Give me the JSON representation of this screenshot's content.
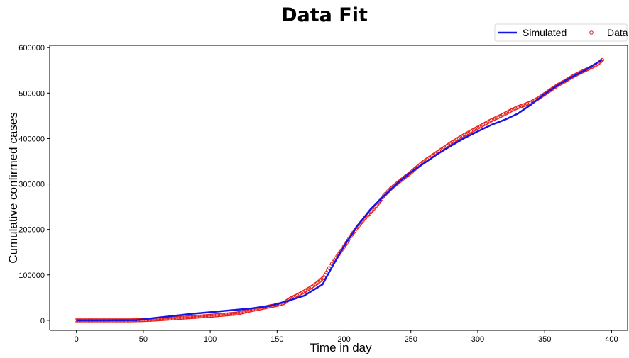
{
  "chart_data": {
    "type": "line",
    "title": "Data Fit",
    "xlabel": "Time in day",
    "ylabel": "Cumulative confirmed cases",
    "xlim": [
      -20,
      412
    ],
    "ylim": [
      -22000,
      605000
    ],
    "xticks": [
      0,
      50,
      100,
      150,
      200,
      250,
      300,
      350,
      400
    ],
    "yticks": [
      0,
      100000,
      200000,
      300000,
      400000,
      500000,
      600000
    ],
    "grid": false,
    "legend_position": "top-right",
    "colors": {
      "simulated": "#1515e8",
      "data": "#e8201d"
    },
    "series": [
      {
        "name": "Simulated",
        "style": "line",
        "points": [
          [
            0,
            0
          ],
          [
            20,
            0
          ],
          [
            45,
            500
          ],
          [
            55,
            4000
          ],
          [
            70,
            9000
          ],
          [
            85,
            14000
          ],
          [
            100,
            18000
          ],
          [
            115,
            22000
          ],
          [
            130,
            26000
          ],
          [
            145,
            32000
          ],
          [
            155,
            40000
          ],
          [
            170,
            54000
          ],
          [
            184,
            79000
          ],
          [
            190,
            112000
          ],
          [
            200,
            163000
          ],
          [
            210,
            208000
          ],
          [
            220,
            245000
          ],
          [
            230,
            274000
          ],
          [
            240,
            302000
          ],
          [
            250,
            326000
          ],
          [
            260,
            346000
          ],
          [
            270,
            366000
          ],
          [
            280,
            384000
          ],
          [
            290,
            401000
          ],
          [
            300,
            416000
          ],
          [
            310,
            430000
          ],
          [
            320,
            441000
          ],
          [
            330,
            455000
          ],
          [
            340,
            475000
          ],
          [
            350,
            498000
          ],
          [
            360,
            518000
          ],
          [
            370,
            535000
          ],
          [
            380,
            550000
          ],
          [
            390,
            568000
          ],
          [
            393,
            574000
          ]
        ]
      },
      {
        "name": "Data",
        "style": "scatter",
        "points": [
          [
            0,
            0
          ],
          [
            20,
            0
          ],
          [
            40,
            0
          ],
          [
            50,
            500
          ],
          [
            60,
            2000
          ],
          [
            70,
            4000
          ],
          [
            80,
            6000
          ],
          [
            90,
            8000
          ],
          [
            100,
            10000
          ],
          [
            110,
            12500
          ],
          [
            120,
            15000
          ],
          [
            130,
            22000
          ],
          [
            140,
            28000
          ],
          [
            150,
            34000
          ],
          [
            155,
            38000
          ],
          [
            160,
            48000
          ],
          [
            165,
            55000
          ],
          [
            170,
            63000
          ],
          [
            175,
            72000
          ],
          [
            180,
            82000
          ],
          [
            185,
            95000
          ],
          [
            190,
            120000
          ],
          [
            195,
            141000
          ],
          [
            200,
            162000
          ],
          [
            205,
            185000
          ],
          [
            210,
            205000
          ],
          [
            215,
            223000
          ],
          [
            220,
            238000
          ],
          [
            225,
            255000
          ],
          [
            230,
            275000
          ],
          [
            235,
            290000
          ],
          [
            240,
            302000
          ],
          [
            245,
            314000
          ],
          [
            250,
            325000
          ],
          [
            255,
            338000
          ],
          [
            260,
            350000
          ],
          [
            265,
            360000
          ],
          [
            270,
            370000
          ],
          [
            275,
            380000
          ],
          [
            280,
            390000
          ],
          [
            285,
            399000
          ],
          [
            290,
            408000
          ],
          [
            295,
            416000
          ],
          [
            300,
            424000
          ],
          [
            305,
            432000
          ],
          [
            310,
            440000
          ],
          [
            315,
            447000
          ],
          [
            320,
            454000
          ],
          [
            325,
            462000
          ],
          [
            330,
            469000
          ],
          [
            335,
            474000
          ],
          [
            340,
            480000
          ],
          [
            345,
            488000
          ],
          [
            350,
            498000
          ],
          [
            355,
            508000
          ],
          [
            360,
            518000
          ],
          [
            365,
            526000
          ],
          [
            370,
            535000
          ],
          [
            375,
            543000
          ],
          [
            380,
            550000
          ],
          [
            385,
            557000
          ],
          [
            390,
            565000
          ],
          [
            393,
            573000
          ]
        ]
      }
    ]
  }
}
